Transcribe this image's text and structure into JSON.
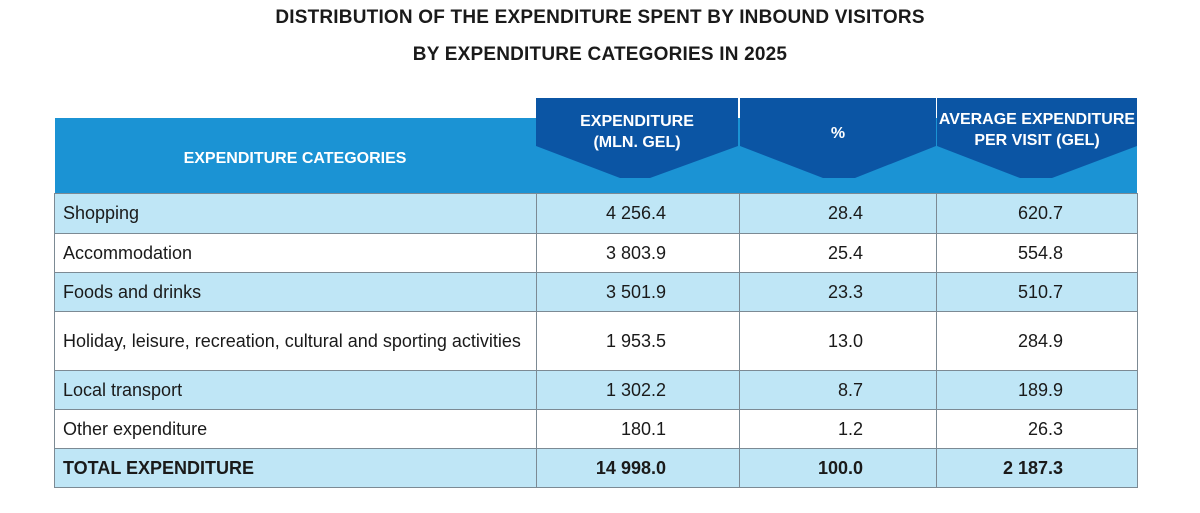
{
  "title": {
    "line1": "DISTRIBUTION OF THE EXPENDITURE SPENT BY INBOUND VISITORS",
    "line2": "BY EXPENDITURE CATEGORIES IN 2025"
  },
  "colors": {
    "header_blue": "#1b93d4",
    "header_dark": "#0b55a4",
    "row_tint": "#bfe6f6"
  },
  "header": {
    "category": "EXPENDITURE CATEGORIES",
    "expenditure": [
      "EXPENDITURE",
      "(MLN. GEL)"
    ],
    "percent": "%",
    "average": [
      "AVERAGE EXPENDITURE",
      "PER VISIT (GEL)"
    ]
  },
  "rows": [
    {
      "category": "Shopping",
      "expenditure": "4 256.4",
      "percent": "28.4",
      "average": "620.7"
    },
    {
      "category": "Accommodation",
      "expenditure": "3 803.9",
      "percent": "25.4",
      "average": "554.8"
    },
    {
      "category": "Foods and drinks",
      "expenditure": "3 501.9",
      "percent": "23.3",
      "average": "510.7"
    },
    {
      "category": "Holiday, leisure, recreation, cultural and sporting activities",
      "expenditure": "1 953.5",
      "percent": "13.0",
      "average": "284.9"
    },
    {
      "category": "Local transport",
      "expenditure": "1 302.2",
      "percent": "8.7",
      "average": "189.9"
    },
    {
      "category": "Other expenditure",
      "expenditure": "180.1",
      "percent": "1.2",
      "average": "26.3"
    }
  ],
  "total": {
    "category": "TOTAL EXPENDITURE",
    "expenditure": "14 998.0",
    "percent": "100.0",
    "average": "2 187.3"
  }
}
